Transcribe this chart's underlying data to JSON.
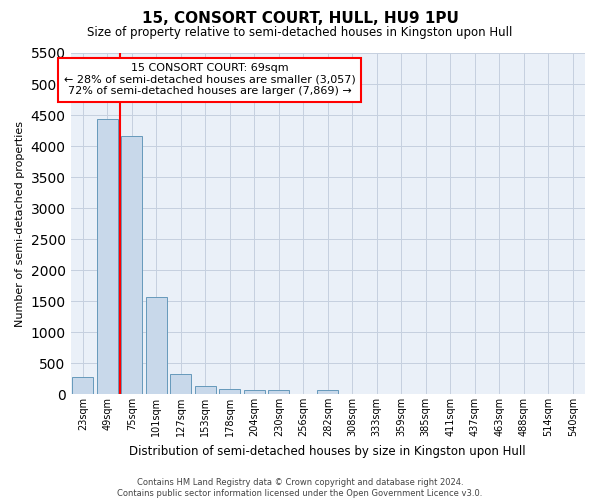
{
  "title": "15, CONSORT COURT, HULL, HU9 1PU",
  "subtitle": "Size of property relative to semi-detached houses in Kingston upon Hull",
  "xlabel": "Distribution of semi-detached houses by size in Kingston upon Hull",
  "ylabel": "Number of semi-detached properties",
  "footer_line1": "Contains HM Land Registry data © Crown copyright and database right 2024.",
  "footer_line2": "Contains public sector information licensed under the Open Government Licence v3.0.",
  "categories": [
    "23sqm",
    "49sqm",
    "75sqm",
    "101sqm",
    "127sqm",
    "153sqm",
    "178sqm",
    "204sqm",
    "230sqm",
    "256sqm",
    "282sqm",
    "308sqm",
    "333sqm",
    "359sqm",
    "385sqm",
    "411sqm",
    "437sqm",
    "463sqm",
    "488sqm",
    "514sqm",
    "540sqm"
  ],
  "values": [
    280,
    4430,
    4160,
    1560,
    320,
    130,
    75,
    65,
    65,
    0,
    60,
    0,
    0,
    0,
    0,
    0,
    0,
    0,
    0,
    0,
    0
  ],
  "bar_color": "#c8d8ea",
  "bar_edge_color": "#6699bb",
  "grid_color": "#c5d0df",
  "background_color": "#eaf0f8",
  "annotation_line1": "15 CONSORT COURT: 69sqm",
  "annotation_line2": "← 28% of semi-detached houses are smaller (3,057)",
  "annotation_line3": "72% of semi-detached houses are larger (7,869) →",
  "redline_x": 1.5,
  "ylim_max": 5500,
  "yticks": [
    0,
    500,
    1000,
    1500,
    2000,
    2500,
    3000,
    3500,
    4000,
    4500,
    5000,
    5500
  ]
}
